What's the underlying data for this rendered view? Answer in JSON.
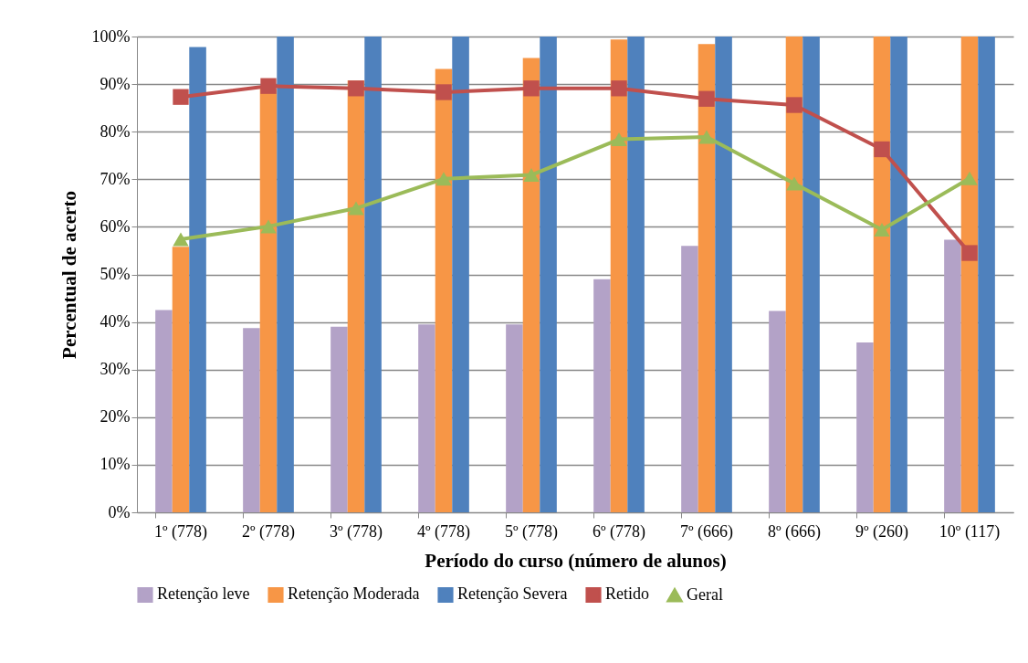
{
  "chart_data": {
    "type": "bar",
    "xlabel": "Período do curso (número de alunos)",
    "ylabel": "Percentual de acerto",
    "categories": [
      "1º (778)",
      "2º (778)",
      "3º (778)",
      "4º (778)",
      "5º (778)",
      "6º (778)",
      "7º (666)",
      "8º (666)",
      "9º (260)",
      "10º (117)"
    ],
    "series": [
      {
        "name": "Retenção leve",
        "color": "#b3a2c7",
        "values": [
          42.5,
          38.7,
          39,
          39.5,
          39.5,
          49,
          56,
          42.3,
          35.7,
          57.3
        ]
      },
      {
        "name": "Retenção Moderada",
        "color": "#f79646",
        "values": [
          55.8,
          89,
          90.8,
          93.2,
          95.5,
          99.4,
          98.4,
          100,
          100,
          100
        ]
      },
      {
        "name": "Retenção Severa",
        "color": "#4f81bd",
        "values": [
          97.8,
          100,
          100,
          100,
          100,
          100,
          100,
          100,
          100,
          100
        ]
      },
      {
        "name": "Retido",
        "type": "line",
        "marker": "square",
        "color": "#c0504d",
        "values": [
          87.3,
          89.6,
          89.1,
          88.3,
          89.1,
          89.1,
          86.9,
          85.6,
          76.3,
          54.5
        ]
      },
      {
        "name": "Geral",
        "type": "line",
        "marker": "triangle",
        "color": "#9bbb59",
        "values": [
          57.4,
          60.1,
          63.9,
          70.1,
          70.9,
          78.4,
          78.9,
          69.1,
          59.4,
          70.2
        ]
      }
    ],
    "ylim": [
      0,
      100
    ],
    "yticks": [
      {
        "value": 0,
        "label": "0%"
      },
      {
        "value": 10,
        "label": "10%"
      },
      {
        "value": 20,
        "label": "20%"
      },
      {
        "value": 30,
        "label": "30%"
      },
      {
        "value": 40,
        "label": "40%"
      },
      {
        "value": 50,
        "label": "50%"
      },
      {
        "value": 60,
        "label": "60%"
      },
      {
        "value": 70,
        "label": "70%"
      },
      {
        "value": 80,
        "label": "80%"
      },
      {
        "value": 90,
        "label": "90%"
      },
      {
        "value": 100,
        "label": "100%"
      }
    ],
    "grid": "y",
    "legend": "bottom"
  }
}
